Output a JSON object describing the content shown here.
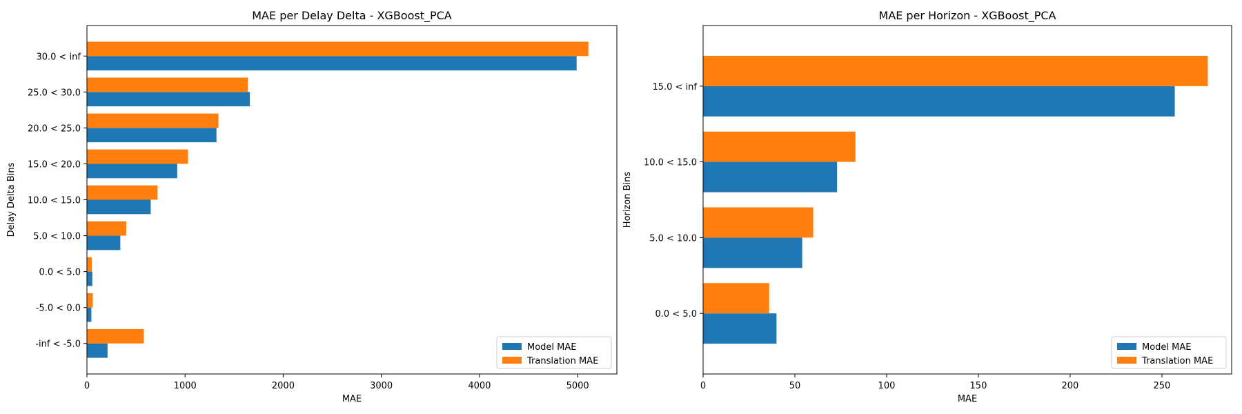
{
  "colors": {
    "model": "#1f77b4",
    "translation": "#ff7f0e"
  },
  "chart_data": [
    {
      "type": "bar",
      "orientation": "horizontal",
      "title": "MAE per Delay Delta - XGBoost_PCA",
      "xlabel": "MAE",
      "ylabel": "Delay Delta Bins",
      "xlim": [
        0,
        5400
      ],
      "xticks": [
        0,
        1000,
        2000,
        3000,
        4000,
        5000
      ],
      "categories": [
        "-inf < -5.0",
        "-5.0 < 0.0",
        "0.0 < 5.0",
        "5.0 < 10.0",
        "10.0 < 15.0",
        "15.0 < 20.0",
        "20.0 < 25.0",
        "25.0 < 30.0",
        "30.0 < inf"
      ],
      "series": [
        {
          "name": "Model MAE",
          "values": [
            210,
            45,
            55,
            340,
            650,
            920,
            1320,
            1660,
            4990
          ]
        },
        {
          "name": "Translation MAE",
          "values": [
            580,
            60,
            50,
            400,
            720,
            1030,
            1340,
            1640,
            5110
          ]
        }
      ],
      "legend": "lower-right",
      "grid": false
    },
    {
      "type": "bar",
      "orientation": "horizontal",
      "title": "MAE per Horizon - XGBoost_PCA",
      "xlabel": "MAE",
      "ylabel": "Horizon Bins",
      "xlim": [
        0,
        288
      ],
      "xticks": [
        0,
        50,
        100,
        150,
        200,
        250
      ],
      "categories": [
        "0.0 < 5.0",
        "5.0 < 10.0",
        "10.0 < 15.0",
        "15.0 < inf"
      ],
      "series": [
        {
          "name": "Model MAE",
          "values": [
            40,
            54,
            73,
            257
          ]
        },
        {
          "name": "Translation MAE",
          "values": [
            36,
            60,
            83,
            275
          ]
        }
      ],
      "legend": "lower-right",
      "grid": false
    }
  ]
}
